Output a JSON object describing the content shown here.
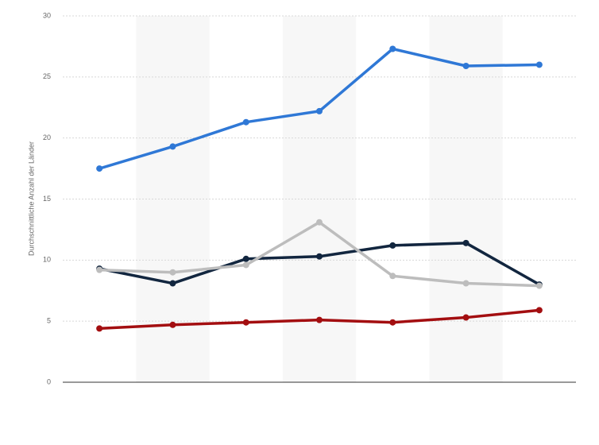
{
  "chart_data": {
    "type": "line",
    "y_label": "Durchschnittliche Anzahl der Länder",
    "categories": [
      null,
      null,
      null,
      null,
      null,
      null,
      null
    ],
    "series": [
      {
        "color": "#2f78d6",
        "values": [
          17.5,
          19.3,
          21.3,
          22.2,
          27.3,
          25.9,
          26.0
        ]
      },
      {
        "color": "#12263f",
        "values": [
          9.3,
          8.1,
          10.1,
          10.3,
          11.2,
          11.4,
          8.0
        ]
      },
      {
        "color": "#bdbdbd",
        "values": [
          9.2,
          9.0,
          9.6,
          13.1,
          8.7,
          8.1,
          7.9
        ]
      },
      {
        "color": "#a30e10",
        "values": [
          4.4,
          4.7,
          4.9,
          5.1,
          4.9,
          5.3,
          5.9
        ]
      }
    ],
    "ylim": [
      0,
      30
    ],
    "yticks": [
      0,
      5,
      10,
      15,
      20,
      25,
      30
    ],
    "grid": true
  }
}
